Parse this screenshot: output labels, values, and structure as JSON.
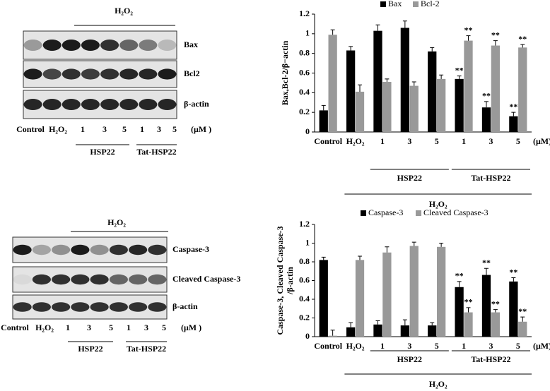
{
  "chart_data": [
    {
      "type": "bar",
      "ylabel": [
        "Bax,Bcl-2/β−actin"
      ],
      "categories": [
        "Control",
        "H₂O₂",
        "1",
        "3",
        "5",
        "1",
        "3",
        "5"
      ],
      "unit": "(μM)",
      "groups": [
        "HSP22",
        "Tat-HSP22"
      ],
      "outer_group": "H₂O₂",
      "series": [
        {
          "name": "Bax",
          "color": "#000000",
          "values": [
            0.22,
            0.83,
            1.03,
            1.06,
            0.82,
            0.54,
            0.25,
            0.16
          ],
          "errors": [
            0.05,
            0.04,
            0.06,
            0.07,
            0.04,
            0.03,
            0.06,
            0.04
          ],
          "significance": [
            null,
            null,
            null,
            null,
            null,
            "**",
            "**",
            "**"
          ]
        },
        {
          "name": "Bcl-2",
          "color": "#999999",
          "values": [
            0.99,
            0.41,
            0.51,
            0.47,
            0.54,
            0.93,
            0.88,
            0.86
          ],
          "errors": [
            0.05,
            0.07,
            0.03,
            0.04,
            0.04,
            0.05,
            0.05,
            0.03
          ],
          "significance": [
            null,
            null,
            null,
            null,
            null,
            "**",
            "**",
            "**"
          ]
        }
      ],
      "ylim": [
        0,
        1.2
      ],
      "yticks": [
        0,
        0.2,
        0.4,
        0.6,
        0.8,
        1,
        1.2
      ]
    },
    {
      "type": "bar",
      "ylabel": [
        "Caspase-3, Cleaved Caspase-3",
        "/β-actin"
      ],
      "categories": [
        "Control",
        "H₂O₂",
        "1",
        "3",
        "5",
        "1",
        "3",
        "5"
      ],
      "unit": "(μM)",
      "groups": [
        "HSP22",
        "Tat-HSP22"
      ],
      "outer_group": "H₂O₂",
      "series": [
        {
          "name": "Caspase-3",
          "color": "#000000",
          "values": [
            0.82,
            0.1,
            0.13,
            0.12,
            0.12,
            0.53,
            0.66,
            0.59
          ],
          "errors": [
            0.03,
            0.05,
            0.04,
            0.06,
            0.03,
            0.06,
            0.07,
            0.04
          ],
          "significance": [
            null,
            null,
            null,
            null,
            null,
            "**",
            "**",
            "**"
          ]
        },
        {
          "name": "Cleaved Caspase-3",
          "color": "#999999",
          "values": [
            0.01,
            0.82,
            0.9,
            0.97,
            0.96,
            0.26,
            0.26,
            0.16
          ],
          "errors": [
            0.06,
            0.04,
            0.06,
            0.04,
            0.04,
            0.05,
            0.03,
            0.05
          ],
          "significance": [
            null,
            null,
            null,
            null,
            null,
            "**",
            "**",
            "**"
          ]
        }
      ],
      "ylim": [
        0,
        1.2
      ],
      "yticks": [
        0,
        0.2,
        0.4,
        0.6,
        0.8,
        1,
        1.2
      ]
    }
  ],
  "blots": [
    {
      "treatment": "H₂O₂",
      "rows": [
        "Bax",
        "Bcl2",
        "β-actin"
      ],
      "lanes": [
        "Control",
        "H₂O₂",
        "1",
        "3",
        "5",
        "1",
        "3",
        "5"
      ],
      "unit": "(μM )",
      "groups": [
        "HSP22",
        "Tat-HSP22"
      ]
    },
    {
      "treatment": "H₂O₂",
      "rows": [
        "Caspase-3",
        "Cleaved Caspase-3",
        "β-actin"
      ],
      "lanes": [
        "Control",
        "H₂O₂",
        "1",
        "3",
        "5",
        "1",
        "3",
        "5"
      ],
      "unit": "(μM )",
      "groups": [
        "HSP22",
        "Tat-HSP22"
      ]
    }
  ]
}
